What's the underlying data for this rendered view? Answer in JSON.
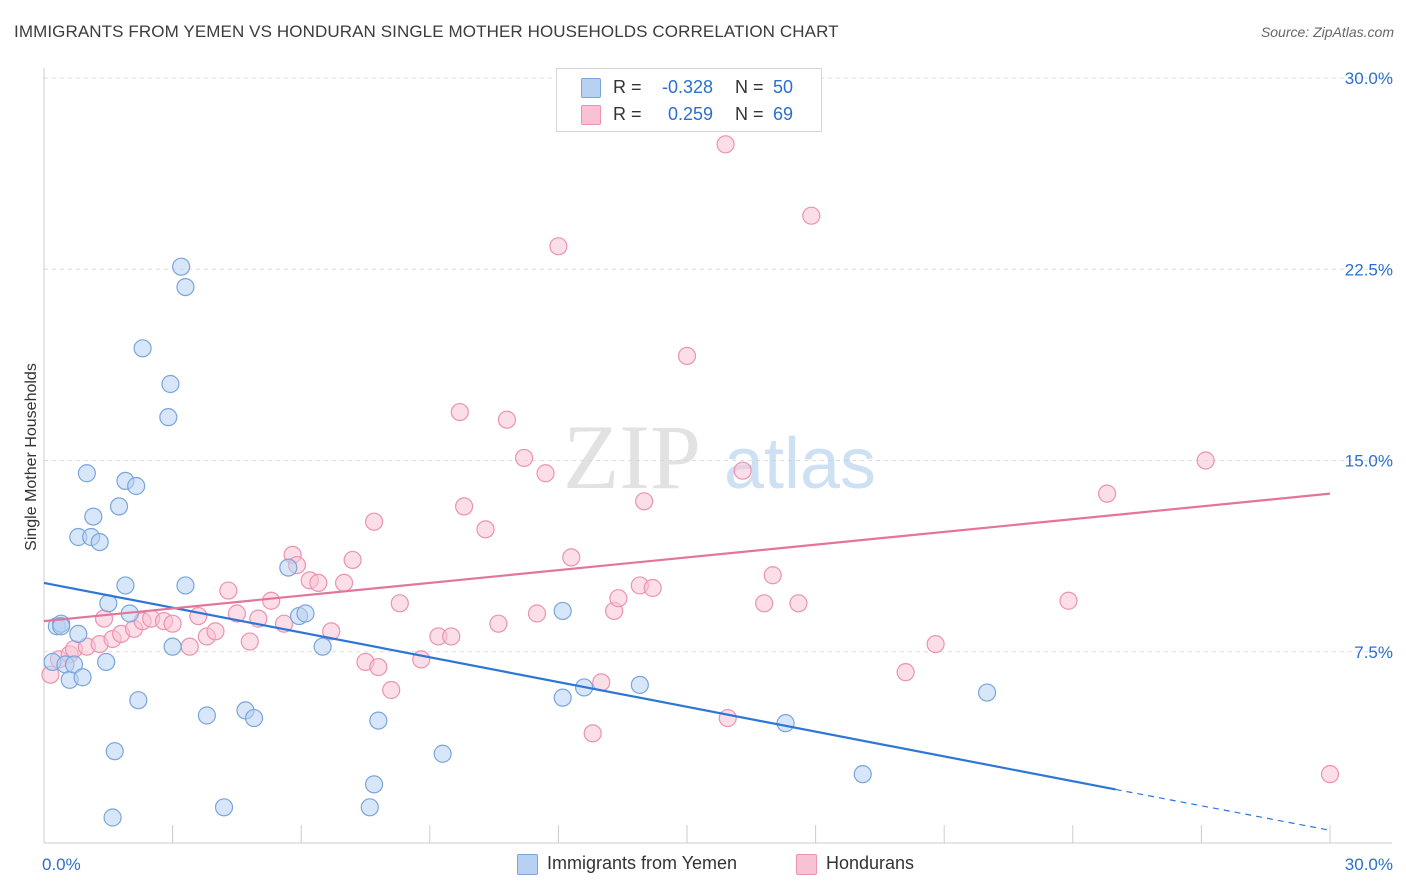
{
  "title": "IMMIGRANTS FROM YEMEN VS HONDURAN SINGLE MOTHER HOUSEHOLDS CORRELATION CHART",
  "source": "Source: ZipAtlas.com",
  "watermark": {
    "zip": "ZIP",
    "atlas": "atlas"
  },
  "stats": {
    "rows": [
      {
        "r_label": "R =",
        "r_value": "-0.328",
        "n_label": "N =",
        "n_value": "50"
      },
      {
        "r_label": "R =",
        "r_value": "0.259",
        "n_label": "N =",
        "n_value": "69"
      }
    ]
  },
  "legend": [
    "Immigrants from Yemen",
    "Hondurans"
  ],
  "colors": {
    "blue_fill": "#b7d1f2",
    "blue_stroke": "#7aa5dc",
    "blue_line": "#2e76d6",
    "pink_fill": "#f7c3d4",
    "pink_stroke": "#eb93b1",
    "pink_line": "#e5749b",
    "tick_label": "#2b6fcf",
    "grid": "#dddddd",
    "axis": "#cccccc"
  },
  "chart_data": {
    "type": "scatter",
    "title": "IMMIGRANTS FROM YEMEN VS HONDURAN SINGLE MOTHER HOUSEHOLDS CORRELATION CHART",
    "xlabel": "",
    "ylabel": "Single Mother Households",
    "xlim": [
      0,
      30
    ],
    "ylim": [
      0,
      30
    ],
    "x_tick_labels": [
      "0.0%",
      "30.0%"
    ],
    "y_ticks": [
      7.5,
      15.0,
      22.5,
      30.0
    ],
    "y_tick_labels": [
      "7.5%",
      "15.0%",
      "22.5%",
      "30.0%"
    ],
    "grid": "horizontal dashed",
    "legend_position": "bottom",
    "series": [
      {
        "name": "Immigrants from Yemen",
        "color": "#b7d1f2",
        "points": [
          [
            0.2,
            7.1
          ],
          [
            0.3,
            8.5
          ],
          [
            0.4,
            8.6
          ],
          [
            0.5,
            7.0
          ],
          [
            0.6,
            6.4
          ],
          [
            0.7,
            7.0
          ],
          [
            0.8,
            12.0
          ],
          [
            0.8,
            8.2
          ],
          [
            0.9,
            6.5
          ],
          [
            1.0,
            14.5
          ],
          [
            1.1,
            12.0
          ],
          [
            1.15,
            12.8
          ],
          [
            1.3,
            11.8
          ],
          [
            1.45,
            7.1
          ],
          [
            1.5,
            9.4
          ],
          [
            1.6,
            1.0
          ],
          [
            1.65,
            3.6
          ],
          [
            1.75,
            13.2
          ],
          [
            1.9,
            14.2
          ],
          [
            1.9,
            10.1
          ],
          [
            2.0,
            9.0
          ],
          [
            2.15,
            14.0
          ],
          [
            2.2,
            5.6
          ],
          [
            2.3,
            19.4
          ],
          [
            2.9,
            16.7
          ],
          [
            2.95,
            18.0
          ],
          [
            3.0,
            7.7
          ],
          [
            3.2,
            22.6
          ],
          [
            3.3,
            21.8
          ],
          [
            3.3,
            10.1
          ],
          [
            3.8,
            5.0
          ],
          [
            4.2,
            1.4
          ],
          [
            4.7,
            5.2
          ],
          [
            4.9,
            4.9
          ],
          [
            5.7,
            10.8
          ],
          [
            5.95,
            8.9
          ],
          [
            6.1,
            9.0
          ],
          [
            6.5,
            7.7
          ],
          [
            7.6,
            1.4
          ],
          [
            7.7,
            2.3
          ],
          [
            7.8,
            4.8
          ],
          [
            9.3,
            3.5
          ],
          [
            12.1,
            9.1
          ],
          [
            12.1,
            5.7
          ],
          [
            12.6,
            6.1
          ],
          [
            13.9,
            6.2
          ],
          [
            17.3,
            4.7
          ],
          [
            19.1,
            2.7
          ],
          [
            22.0,
            5.9
          ],
          [
            0.4,
            8.5
          ]
        ]
      },
      {
        "name": "Hondurans",
        "color": "#f7c3d4",
        "points": [
          [
            0.15,
            6.6
          ],
          [
            0.35,
            7.2
          ],
          [
            0.6,
            7.4
          ],
          [
            0.7,
            7.6
          ],
          [
            1.0,
            7.7
          ],
          [
            1.3,
            7.8
          ],
          [
            1.4,
            8.8
          ],
          [
            1.6,
            8.0
          ],
          [
            1.8,
            8.2
          ],
          [
            2.1,
            8.4
          ],
          [
            2.3,
            8.7
          ],
          [
            2.5,
            8.8
          ],
          [
            2.8,
            8.7
          ],
          [
            3.0,
            8.6
          ],
          [
            3.4,
            7.7
          ],
          [
            3.6,
            8.9
          ],
          [
            3.8,
            8.1
          ],
          [
            4.0,
            8.3
          ],
          [
            4.3,
            9.9
          ],
          [
            4.5,
            9.0
          ],
          [
            4.8,
            7.9
          ],
          [
            5.0,
            8.8
          ],
          [
            5.3,
            9.5
          ],
          [
            5.6,
            8.6
          ],
          [
            5.8,
            11.3
          ],
          [
            5.9,
            10.9
          ],
          [
            6.2,
            10.3
          ],
          [
            6.4,
            10.2
          ],
          [
            6.7,
            8.3
          ],
          [
            7.0,
            10.2
          ],
          [
            7.2,
            11.1
          ],
          [
            7.5,
            7.1
          ],
          [
            7.7,
            12.6
          ],
          [
            7.8,
            6.9
          ],
          [
            8.1,
            6.0
          ],
          [
            8.3,
            9.4
          ],
          [
            8.8,
            7.2
          ],
          [
            9.2,
            8.1
          ],
          [
            9.5,
            8.1
          ],
          [
            9.8,
            13.2
          ],
          [
            9.7,
            16.9
          ],
          [
            10.3,
            12.3
          ],
          [
            10.6,
            8.6
          ],
          [
            10.8,
            16.6
          ],
          [
            11.2,
            15.1
          ],
          [
            11.5,
            9.0
          ],
          [
            11.7,
            14.5
          ],
          [
            12.0,
            23.4
          ],
          [
            12.3,
            11.2
          ],
          [
            12.8,
            4.3
          ],
          [
            13.0,
            6.3
          ],
          [
            13.3,
            9.1
          ],
          [
            13.4,
            9.6
          ],
          [
            13.9,
            10.1
          ],
          [
            14.0,
            13.4
          ],
          [
            14.2,
            10.0
          ],
          [
            15.0,
            19.1
          ],
          [
            15.9,
            27.4
          ],
          [
            15.95,
            4.9
          ],
          [
            16.3,
            14.6
          ],
          [
            16.8,
            9.4
          ],
          [
            17.0,
            10.5
          ],
          [
            17.6,
            9.4
          ],
          [
            17.9,
            24.6
          ],
          [
            20.1,
            6.7
          ],
          [
            20.8,
            7.8
          ],
          [
            23.9,
            9.5
          ],
          [
            24.8,
            13.7
          ],
          [
            27.1,
            15.0
          ],
          [
            30.0,
            2.7
          ]
        ]
      }
    ],
    "trend_lines": [
      {
        "series": "Immigrants from Yemen",
        "x": [
          0,
          25
        ],
        "y": [
          10.2,
          2.1
        ],
        "dashed_extension_to_x": 30,
        "dashed_extension_y": 0.5
      },
      {
        "series": "Hondurans",
        "x": [
          0,
          30
        ],
        "y": [
          8.7,
          13.7
        ]
      }
    ]
  }
}
